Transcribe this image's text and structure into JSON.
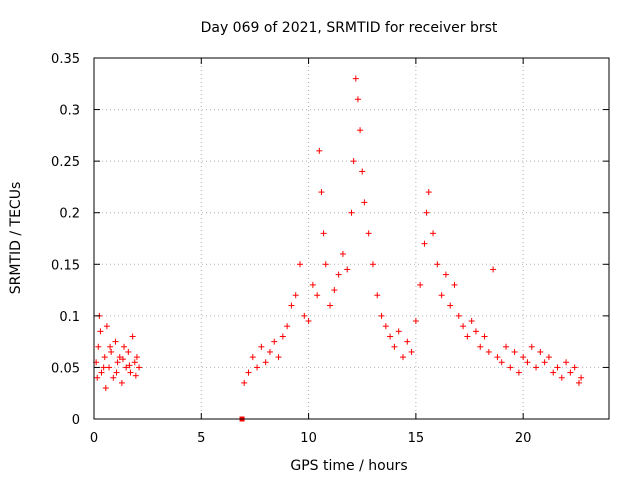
{
  "chart_data": {
    "type": "scatter",
    "title": "Day 069 of 2021, SRMTID for receiver brst",
    "xlabel": "GPS time / hours",
    "ylabel": "SRMTID / TECUs",
    "xlim": [
      0,
      24
    ],
    "ylim": [
      0,
      0.35
    ],
    "xticks": [
      0,
      5,
      10,
      15,
      20
    ],
    "yticks": [
      0,
      0.05,
      0.1,
      0.15,
      0.2,
      0.25,
      0.3,
      0.35
    ],
    "xtick_labels": [
      "0",
      "5",
      "10",
      "15",
      "20"
    ],
    "ytick_labels": [
      "0",
      "0.05",
      "0.1",
      "0.15",
      "0.2",
      "0.25",
      "0.3",
      "0.35"
    ],
    "grid": true,
    "marker": "+",
    "color": "#ff0000",
    "series": [
      {
        "name": "SRMTID",
        "points": [
          [
            0.1,
            0.055
          ],
          [
            0.2,
            0.07
          ],
          [
            0.3,
            0.085
          ],
          [
            0.35,
            0.045
          ],
          [
            0.5,
            0.06
          ],
          [
            0.6,
            0.09
          ],
          [
            0.7,
            0.05
          ],
          [
            0.8,
            0.065
          ],
          [
            0.9,
            0.04
          ],
          [
            1.0,
            0.075
          ],
          [
            1.1,
            0.055
          ],
          [
            1.2,
            0.06
          ],
          [
            1.3,
            0.035
          ],
          [
            1.4,
            0.07
          ],
          [
            1.5,
            0.05
          ],
          [
            1.6,
            0.065
          ],
          [
            1.7,
            0.045
          ],
          [
            1.8,
            0.08
          ],
          [
            1.9,
            0.055
          ],
          [
            2.0,
            0.06
          ],
          [
            2.1,
            0.05
          ],
          [
            0.15,
            0.04
          ],
          [
            0.45,
            0.05
          ],
          [
            0.75,
            0.07
          ],
          [
            1.05,
            0.045
          ],
          [
            1.35,
            0.058
          ],
          [
            1.65,
            0.052
          ],
          [
            1.95,
            0.042
          ],
          [
            0.25,
            0.1
          ],
          [
            0.55,
            0.03
          ],
          [
            7.0,
            0.035
          ],
          [
            7.2,
            0.045
          ],
          [
            7.4,
            0.06
          ],
          [
            7.6,
            0.05
          ],
          [
            7.8,
            0.07
          ],
          [
            8.0,
            0.055
          ],
          [
            8.2,
            0.065
          ],
          [
            8.4,
            0.075
          ],
          [
            8.6,
            0.06
          ],
          [
            8.8,
            0.08
          ],
          [
            9.0,
            0.09
          ],
          [
            9.2,
            0.11
          ],
          [
            9.4,
            0.12
          ],
          [
            9.6,
            0.15
          ],
          [
            9.8,
            0.1
          ],
          [
            10.0,
            0.095
          ],
          [
            10.2,
            0.13
          ],
          [
            10.4,
            0.12
          ],
          [
            10.5,
            0.26
          ],
          [
            10.6,
            0.22
          ],
          [
            10.7,
            0.18
          ],
          [
            10.8,
            0.15
          ],
          [
            11.0,
            0.11
          ],
          [
            11.2,
            0.125
          ],
          [
            11.4,
            0.14
          ],
          [
            11.6,
            0.16
          ],
          [
            11.8,
            0.145
          ],
          [
            12.0,
            0.2
          ],
          [
            12.1,
            0.25
          ],
          [
            12.2,
            0.33
          ],
          [
            12.3,
            0.31
          ],
          [
            12.4,
            0.28
          ],
          [
            12.5,
            0.24
          ],
          [
            12.6,
            0.21
          ],
          [
            12.8,
            0.18
          ],
          [
            13.0,
            0.15
          ],
          [
            13.2,
            0.12
          ],
          [
            13.4,
            0.1
          ],
          [
            13.6,
            0.09
          ],
          [
            13.8,
            0.08
          ],
          [
            14.0,
            0.07
          ],
          [
            14.2,
            0.085
          ],
          [
            14.4,
            0.06
          ],
          [
            14.6,
            0.075
          ],
          [
            14.8,
            0.065
          ],
          [
            15.0,
            0.095
          ],
          [
            15.2,
            0.13
          ],
          [
            15.4,
            0.17
          ],
          [
            15.5,
            0.2
          ],
          [
            15.6,
            0.22
          ],
          [
            15.8,
            0.18
          ],
          [
            16.0,
            0.15
          ],
          [
            16.2,
            0.12
          ],
          [
            16.4,
            0.14
          ],
          [
            16.6,
            0.11
          ],
          [
            16.8,
            0.13
          ],
          [
            17.0,
            0.1
          ],
          [
            17.2,
            0.09
          ],
          [
            17.4,
            0.08
          ],
          [
            17.6,
            0.095
          ],
          [
            17.8,
            0.085
          ],
          [
            18.0,
            0.07
          ],
          [
            18.2,
            0.08
          ],
          [
            18.4,
            0.065
          ],
          [
            18.6,
            0.145
          ],
          [
            18.8,
            0.06
          ],
          [
            19.0,
            0.055
          ],
          [
            19.2,
            0.07
          ],
          [
            19.4,
            0.05
          ],
          [
            19.6,
            0.065
          ],
          [
            19.8,
            0.045
          ],
          [
            20.0,
            0.06
          ],
          [
            20.2,
            0.055
          ],
          [
            20.4,
            0.07
          ],
          [
            20.6,
            0.05
          ],
          [
            20.8,
            0.065
          ],
          [
            21.0,
            0.055
          ],
          [
            21.2,
            0.06
          ],
          [
            21.4,
            0.045
          ],
          [
            21.6,
            0.05
          ],
          [
            21.8,
            0.04
          ],
          [
            22.0,
            0.055
          ],
          [
            22.2,
            0.045
          ],
          [
            22.4,
            0.05
          ],
          [
            22.6,
            0.035
          ],
          [
            22.7,
            0.04
          ]
        ]
      }
    ],
    "marker_points": [
      {
        "x": 6.9,
        "y": 0.0
      }
    ]
  }
}
